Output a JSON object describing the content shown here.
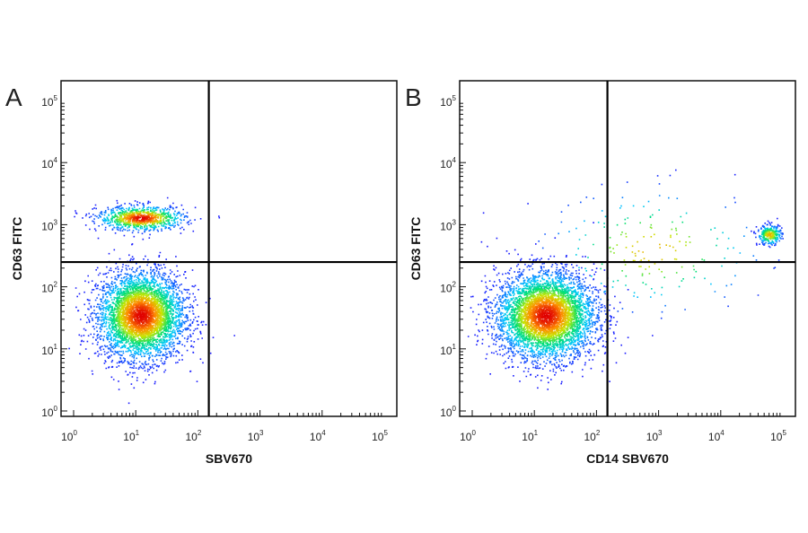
{
  "chart_data": [
    {
      "type": "scatter",
      "panel_label": "A",
      "xlabel": "SBV670",
      "ylabel": "CD63 FITC",
      "x_scale": "log",
      "y_scale": "log",
      "xlim": [
        1,
        100000
      ],
      "ylim": [
        1,
        100000
      ],
      "x_ticks": [
        1,
        10,
        100,
        1000,
        10000,
        100000
      ],
      "y_ticks": [
        1,
        10,
        100,
        1000,
        10000,
        100000
      ],
      "x_tick_labels": [
        [
          "10",
          "0"
        ],
        [
          "10",
          "1"
        ],
        [
          "10",
          "2"
        ],
        [
          "10",
          "3"
        ],
        [
          "10",
          "4"
        ],
        [
          "10",
          "5"
        ]
      ],
      "y_tick_labels": [
        [
          "10",
          "0"
        ],
        [
          "10",
          "1"
        ],
        [
          "10",
          "2"
        ],
        [
          "10",
          "3"
        ],
        [
          "10",
          "4"
        ],
        [
          "10",
          "5"
        ]
      ],
      "quadrant_gate": {
        "x": 150,
        "y": 250
      },
      "populations": [
        {
          "description": "CD63 low, SBV670 negative",
          "center": [
            12,
            35
          ],
          "spread_log10": [
            0.35,
            0.35
          ],
          "relative_size": 0.82
        },
        {
          "description": "CD63 high, SBV670 negative",
          "center": [
            12,
            1300
          ],
          "spread_log10": [
            0.35,
            0.1
          ],
          "relative_size": 0.18
        }
      ],
      "density_colormap": [
        "#1a1aff",
        "#00c8ff",
        "#00e070",
        "#c8e600",
        "#ff8c00",
        "#e00000"
      ],
      "grid": false
    },
    {
      "type": "scatter",
      "panel_label": "B",
      "xlabel": "CD14 SBV670",
      "ylabel": "CD63 FITC",
      "x_scale": "log",
      "y_scale": "log",
      "xlim": [
        1,
        100000
      ],
      "ylim": [
        1,
        100000
      ],
      "x_ticks": [
        1,
        10,
        100,
        1000,
        10000,
        100000
      ],
      "y_ticks": [
        1,
        10,
        100,
        1000,
        10000,
        100000
      ],
      "x_tick_labels": [
        [
          "10",
          "0"
        ],
        [
          "10",
          "1"
        ],
        [
          "10",
          "2"
        ],
        [
          "10",
          "3"
        ],
        [
          "10",
          "4"
        ],
        [
          "10",
          "5"
        ]
      ],
      "y_tick_labels": [
        [
          "10",
          "0"
        ],
        [
          "10",
          "1"
        ],
        [
          "10",
          "2"
        ],
        [
          "10",
          "3"
        ],
        [
          "10",
          "4"
        ],
        [
          "10",
          "5"
        ]
      ],
      "quadrant_gate": {
        "x": 150,
        "y": 250
      },
      "populations": [
        {
          "description": "CD14 negative, CD63 low",
          "center": [
            15,
            35
          ],
          "spread_log10": [
            0.4,
            0.35
          ],
          "relative_size": 0.9
        },
        {
          "description": "CD14 high, CD63 high",
          "center": [
            60000,
            700
          ],
          "spread_log10": [
            0.1,
            0.08
          ],
          "relative_size": 0.06
        },
        {
          "description": "sparse events",
          "center": [
            800,
            400
          ],
          "spread_log10": [
            0.9,
            0.5
          ],
          "relative_size": 0.04
        }
      ],
      "density_colormap": [
        "#1a1aff",
        "#00c8ff",
        "#00e070",
        "#c8e600",
        "#ff8c00",
        "#e00000"
      ],
      "grid": false
    }
  ]
}
